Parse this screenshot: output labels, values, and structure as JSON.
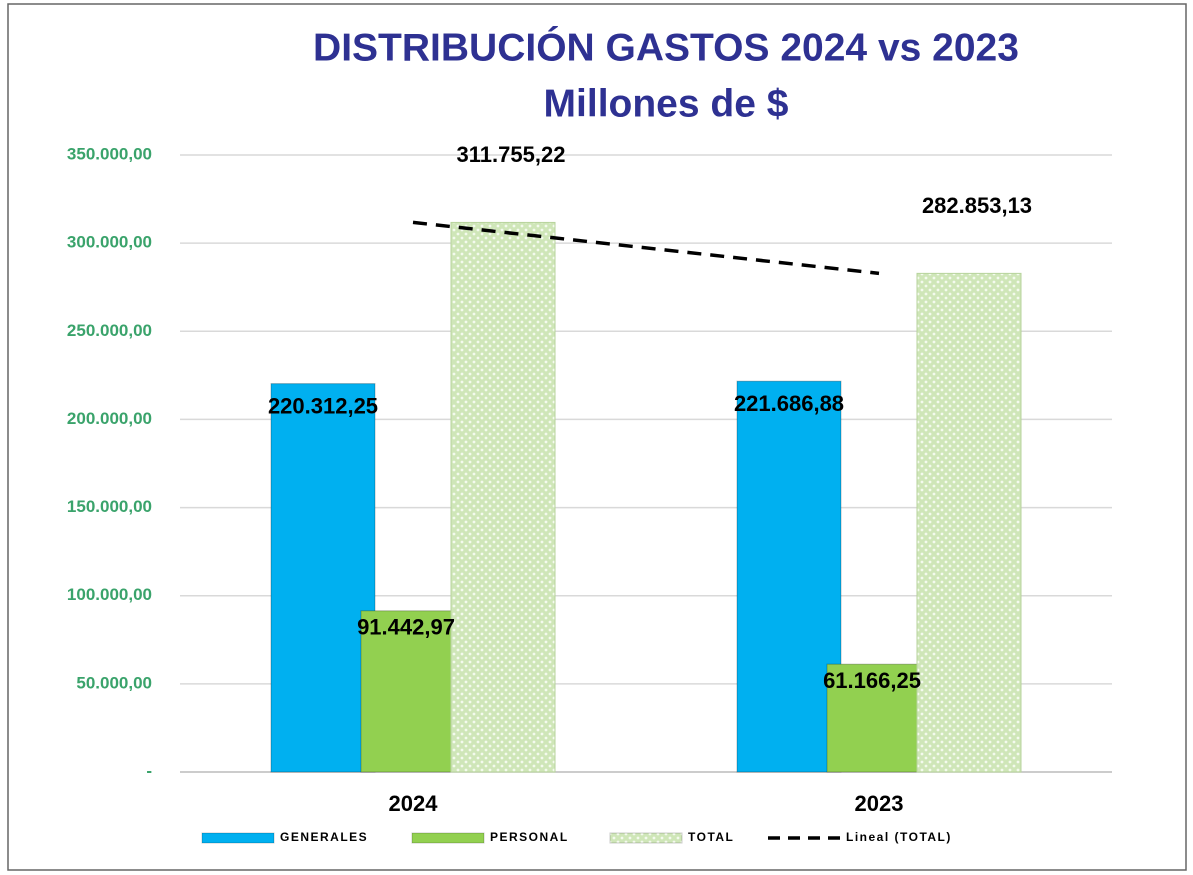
{
  "chart_data": {
    "type": "bar",
    "title": "DISTRIBUCIÓN GASTOS 2024 vs 2023",
    "subtitle": "Millones de $",
    "categories": [
      "2024",
      "2023"
    ],
    "series": [
      {
        "name": "GENERALES",
        "color": "#00b0f0",
        "values": [
          220312.25,
          221686.88
        ],
        "value_labels": [
          "220.312,25",
          "221.686,88"
        ]
      },
      {
        "name": "PERSONAL",
        "color": "#92d050",
        "values": [
          91442.97,
          61166.25
        ],
        "value_labels": [
          "91.442,97",
          "61.166,25"
        ]
      },
      {
        "name": "TOTAL",
        "color": "#d4eac0",
        "values": [
          311755.22,
          282853.13
        ],
        "value_labels": [
          "311.755,22",
          "282.853,13"
        ]
      }
    ],
    "trendline": {
      "name": "Lineal (TOTAL)",
      "color": "#000000"
    },
    "ylim": [
      0,
      350000
    ],
    "yticks": [
      {
        "value": 0,
        "label": "-"
      },
      {
        "value": 50000,
        "label": "50.000,00"
      },
      {
        "value": 100000,
        "label": "100.000,00"
      },
      {
        "value": 150000,
        "label": "150.000,00"
      },
      {
        "value": 200000,
        "label": "200.000,00"
      },
      {
        "value": 250000,
        "label": "250.000,00"
      },
      {
        "value": 300000,
        "label": "300.000,00"
      },
      {
        "value": 350000,
        "label": "350.000,00"
      }
    ],
    "grid": true,
    "legend": "bottom"
  }
}
